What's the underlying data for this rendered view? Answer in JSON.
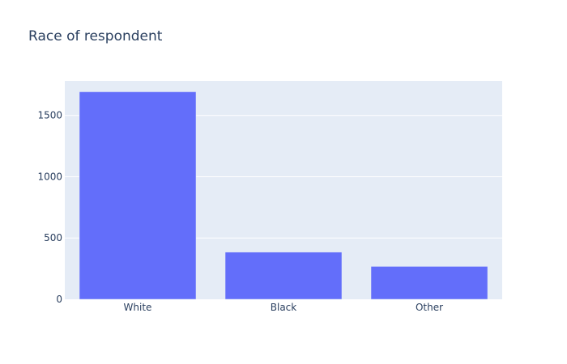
{
  "chart_data": {
    "type": "bar",
    "title": "Race of respondent",
    "xlabel": "",
    "ylabel": "",
    "categories": [
      "White",
      "Black",
      "Other"
    ],
    "values": [
      1693,
      385,
      268
    ],
    "ylim": [
      0,
      1782
    ],
    "yticks": [
      0,
      500,
      1000,
      1500
    ],
    "grid": true,
    "legend": "none",
    "colors": {
      "bar": "#636efa",
      "plot_background": "#e5ecf6",
      "gridline": "#ffffff",
      "text": "#2a3f5f"
    }
  }
}
